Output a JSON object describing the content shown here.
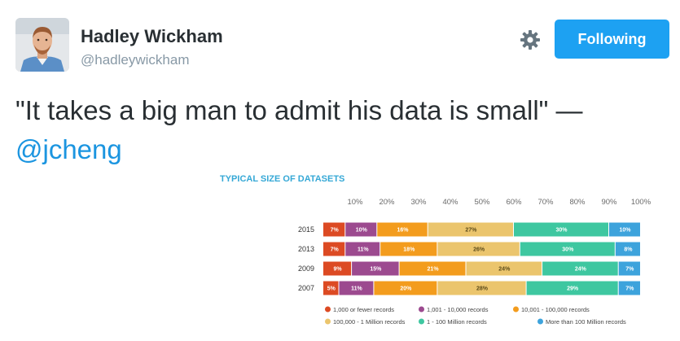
{
  "profile": {
    "display_name": "Hadley Wickham",
    "handle": "@hadleywickham"
  },
  "actions": {
    "follow_label": "Following"
  },
  "tweet": {
    "text": "\"It takes a big man to admit his data is small\" —",
    "mention": "@jcheng"
  },
  "icons": {
    "settings": "gear-icon"
  },
  "colors": {
    "brand_blue": "#1da1f2",
    "mention_blue": "#1b95e0"
  },
  "chart_data": {
    "type": "bar",
    "orientation": "horizontal-stacked",
    "title": "TYPICAL SIZE OF DATASETS",
    "x_ticks": [
      "10%",
      "20%",
      "30%",
      "40%",
      "50%",
      "60%",
      "70%",
      "80%",
      "90%",
      "100%"
    ],
    "xlim": [
      0,
      100
    ],
    "categories": [
      "2015",
      "2013",
      "2009",
      "2007"
    ],
    "series": [
      {
        "name": "1,000 or fewer records",
        "color": "#dc4a23",
        "values": [
          7,
          7,
          9,
          5
        ],
        "labels": [
          "7%",
          "7%",
          "9%",
          "5%"
        ]
      },
      {
        "name": "1,001 - 10,000 records",
        "color": "#9c4a8f",
        "values": [
          10,
          11,
          15,
          11
        ],
        "labels": [
          "10%",
          "11%",
          "15%",
          "11%"
        ]
      },
      {
        "name": "10,001 - 100,000 records",
        "color": "#f39c1d",
        "values": [
          16,
          18,
          21,
          20
        ],
        "labels": [
          "16%",
          "18%",
          "21%",
          "20%"
        ]
      },
      {
        "name": "100,000 - 1 Million records",
        "color": "#ebc56d",
        "values": [
          27,
          26,
          24,
          28
        ],
        "labels": [
          "27%",
          "26%",
          "24%",
          "28%"
        ]
      },
      {
        "name": "1 - 100 Million records",
        "color": "#3ec7a0",
        "values": [
          30,
          30,
          24,
          29
        ],
        "labels": [
          "30%",
          "30%",
          "24%",
          "29%"
        ]
      },
      {
        "name": "More than 100 Million records",
        "color": "#3da3dc",
        "values": [
          10,
          8,
          7,
          7
        ],
        "labels": [
          "10%",
          "8%",
          "7%",
          "7%"
        ]
      }
    ],
    "legend_position": "bottom"
  }
}
